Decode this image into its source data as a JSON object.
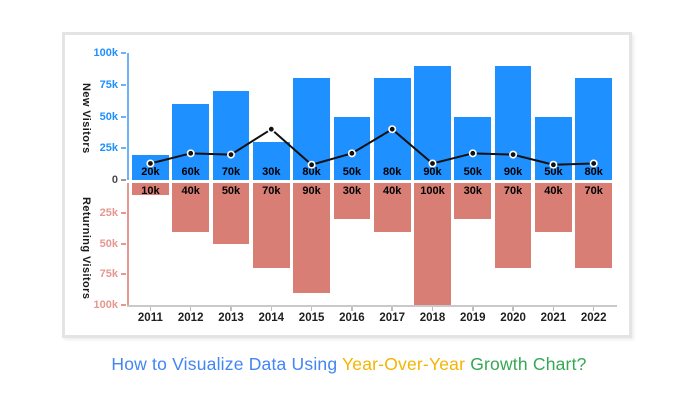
{
  "page": {
    "background": "#ffffff"
  },
  "title": {
    "segments": [
      {
        "text": "How to Visualize Data Using ",
        "color": "#4285F4"
      },
      {
        "text": "Year-Over-Year ",
        "color": "#F5B400"
      },
      {
        "text": "Growth Chart?",
        "color": "#34A853"
      }
    ]
  },
  "chart_data": {
    "type": "bar",
    "subtype": "diverging-bars-with-trend-line",
    "title": "",
    "grid": false,
    "legend": false,
    "categories": [
      "2011",
      "2012",
      "2013",
      "2014",
      "2015",
      "2016",
      "2017",
      "2018",
      "2019",
      "2020",
      "2021",
      "2022"
    ],
    "series": [
      {
        "name": "New Visitors",
        "type": "bar",
        "direction": "up",
        "color": "#1E90FF",
        "values_k": [
          20,
          60,
          70,
          30,
          80,
          50,
          80,
          90,
          50,
          90,
          50,
          80
        ],
        "labels": [
          "20k",
          "60k",
          "70k",
          "30k",
          "80k",
          "50k",
          "80k",
          "90k",
          "50k",
          "90k",
          "50k",
          "80k"
        ]
      },
      {
        "name": "Returning Visitors",
        "type": "bar",
        "direction": "down",
        "color": "#D87E74",
        "values_k": [
          10,
          40,
          50,
          70,
          90,
          30,
          40,
          100,
          30,
          70,
          40,
          70
        ],
        "labels": [
          "10k",
          "40k",
          "50k",
          "70k",
          "90k",
          "30k",
          "40k",
          "100k",
          "30k",
          "70k",
          "40k",
          "70k"
        ]
      },
      {
        "name": "trend-line",
        "type": "line",
        "color": "#111111",
        "values_k": [
          13,
          21,
          20,
          40,
          12,
          21,
          40,
          13,
          21,
          20,
          12,
          13
        ],
        "note": "values estimated from pixel positions; no data labels shown"
      }
    ],
    "y_axis_top": {
      "label": "New Visitors",
      "range_k": [
        0,
        100
      ],
      "tick_values": [
        100,
        75,
        50,
        25,
        0
      ],
      "tick_labels": [
        "100k",
        "75k",
        "50k",
        "25k",
        "0"
      ],
      "tick_color": "#1E90FF",
      "zero_color": "#4a4a4a",
      "axis_line_color": "#6FB1F5"
    },
    "y_axis_bottom": {
      "label": "Returning Visitors",
      "inverted": true,
      "range_k": [
        0,
        100
      ],
      "tick_values": [
        25,
        50,
        75,
        100
      ],
      "tick_labels": [
        "25k",
        "50k",
        "75k",
        "100k"
      ],
      "tick_color": "#E59790",
      "axis_line_color": "#E59790"
    },
    "x_axis": {
      "tick_labels": [
        "2011",
        "2012",
        "2013",
        "2014",
        "2015",
        "2016",
        "2017",
        "2018",
        "2019",
        "2020",
        "2021",
        "2022"
      ],
      "line_color": "#c9c9c9"
    }
  }
}
